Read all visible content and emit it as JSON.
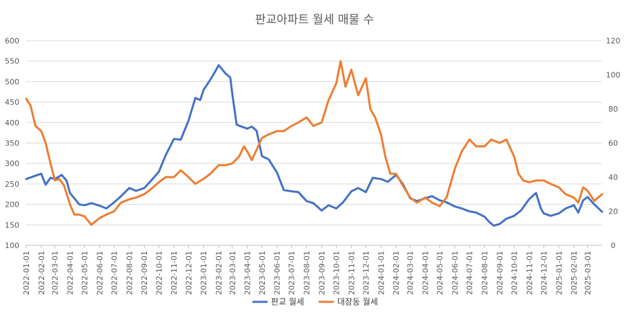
{
  "chart_data": {
    "type": "line",
    "title": "판교아파트 월세 매물 수",
    "x_tick_labels": [
      "2022-01-01",
      "2022-02-01",
      "2022-03-01",
      "2022-04-01",
      "2022-05-01",
      "2022-06-01",
      "2022-07-01",
      "2022-08-01",
      "2022-09-01",
      "2022-10-01",
      "2022-11-01",
      "2022-12-01",
      "2023-01-01",
      "2023-02-01",
      "2023-03-01",
      "2023-04-01",
      "2023-05-01",
      "2023-06-01",
      "2023-07-01",
      "2023-08-01",
      "2023-09-01",
      "2023-10-01",
      "2023-11-01",
      "2023-12-01",
      "2024-01-01",
      "2024-02-01",
      "2024-03-01",
      "2024-04-01",
      "2024-05-01",
      "2024-06-01",
      "2024-07-01",
      "2024-08-01",
      "2024-09-01",
      "2024-10-01",
      "2024-11-01",
      "2024-12-01",
      "2025-01-01",
      "2025-02-01",
      "2025-03-01"
    ],
    "y_left": {
      "ticks": [
        100,
        150,
        200,
        250,
        300,
        350,
        400,
        450,
        500,
        550,
        600
      ],
      "range": [
        100,
        600
      ]
    },
    "y_right": {
      "ticks": [
        0,
        20,
        40,
        60,
        80,
        100,
        120
      ],
      "range": [
        0,
        120
      ]
    },
    "grid": true,
    "legend_position": "bottom",
    "series": [
      {
        "name": "판교 월세",
        "axis": "left",
        "color": "#4472c4",
        "points": [
          [
            "2022-01-01",
            262
          ],
          [
            "2022-01-15",
            268
          ],
          [
            "2022-02-01",
            275
          ],
          [
            "2022-02-10",
            248
          ],
          [
            "2022-02-20",
            265
          ],
          [
            "2022-03-01",
            262
          ],
          [
            "2022-03-15",
            272
          ],
          [
            "2022-03-25",
            258
          ],
          [
            "2022-04-01",
            228
          ],
          [
            "2022-04-10",
            215
          ],
          [
            "2022-04-20",
            200
          ],
          [
            "2022-05-01",
            198
          ],
          [
            "2022-05-15",
            203
          ],
          [
            "2022-06-01",
            197
          ],
          [
            "2022-06-15",
            190
          ],
          [
            "2022-07-01",
            205
          ],
          [
            "2022-07-15",
            220
          ],
          [
            "2022-08-01",
            240
          ],
          [
            "2022-08-15",
            233
          ],
          [
            "2022-09-01",
            240
          ],
          [
            "2022-09-15",
            258
          ],
          [
            "2022-10-01",
            280
          ],
          [
            "2022-10-15",
            320
          ],
          [
            "2022-11-01",
            360
          ],
          [
            "2022-11-15",
            358
          ],
          [
            "2022-12-01",
            405
          ],
          [
            "2022-12-15",
            460
          ],
          [
            "2022-12-25",
            455
          ],
          [
            "2023-01-01",
            480
          ],
          [
            "2023-01-15",
            505
          ],
          [
            "2023-01-25",
            525
          ],
          [
            "2023-02-01",
            540
          ],
          [
            "2023-02-15",
            520
          ],
          [
            "2023-02-25",
            510
          ],
          [
            "2023-03-01",
            470
          ],
          [
            "2023-03-10",
            395
          ],
          [
            "2023-03-20",
            390
          ],
          [
            "2023-04-01",
            385
          ],
          [
            "2023-04-10",
            390
          ],
          [
            "2023-04-20",
            380
          ],
          [
            "2023-05-01",
            318
          ],
          [
            "2023-05-15",
            310
          ],
          [
            "2023-06-01",
            278
          ],
          [
            "2023-06-15",
            235
          ],
          [
            "2023-07-01",
            232
          ],
          [
            "2023-07-15",
            230
          ],
          [
            "2023-08-01",
            208
          ],
          [
            "2023-08-15",
            203
          ],
          [
            "2023-09-01",
            185
          ],
          [
            "2023-09-15",
            198
          ],
          [
            "2023-10-01",
            190
          ],
          [
            "2023-10-15",
            205
          ],
          [
            "2023-11-01",
            232
          ],
          [
            "2023-11-15",
            240
          ],
          [
            "2023-12-01",
            230
          ],
          [
            "2023-12-15",
            265
          ],
          [
            "2024-01-01",
            262
          ],
          [
            "2024-01-15",
            255
          ],
          [
            "2024-02-01",
            272
          ],
          [
            "2024-02-15",
            250
          ],
          [
            "2024-03-01",
            215
          ],
          [
            "2024-03-15",
            208
          ],
          [
            "2024-04-01",
            215
          ],
          [
            "2024-04-15",
            220
          ],
          [
            "2024-05-01",
            210
          ],
          [
            "2024-05-15",
            205
          ],
          [
            "2024-06-01",
            195
          ],
          [
            "2024-06-15",
            190
          ],
          [
            "2024-07-01",
            183
          ],
          [
            "2024-07-15",
            180
          ],
          [
            "2024-08-01",
            170
          ],
          [
            "2024-08-10",
            158
          ],
          [
            "2024-08-20",
            148
          ],
          [
            "2024-09-01",
            152
          ],
          [
            "2024-09-15",
            165
          ],
          [
            "2024-10-01",
            172
          ],
          [
            "2024-10-15",
            185
          ],
          [
            "2024-11-01",
            213
          ],
          [
            "2024-11-15",
            228
          ],
          [
            "2024-11-25",
            190
          ],
          [
            "2024-12-01",
            178
          ],
          [
            "2024-12-15",
            172
          ],
          [
            "2025-01-01",
            178
          ],
          [
            "2025-01-15",
            190
          ],
          [
            "2025-02-01",
            198
          ],
          [
            "2025-02-10",
            180
          ],
          [
            "2025-02-20",
            210
          ],
          [
            "2025-03-01",
            218
          ],
          [
            "2025-03-15",
            200
          ],
          [
            "2025-03-31",
            182
          ]
        ]
      },
      {
        "name": "대장동 월세",
        "axis": "right",
        "color": "#ed7d31",
        "points": [
          [
            "2022-01-01",
            86
          ],
          [
            "2022-01-10",
            82
          ],
          [
            "2022-01-20",
            70
          ],
          [
            "2022-02-01",
            67
          ],
          [
            "2022-02-10",
            60
          ],
          [
            "2022-02-20",
            48
          ],
          [
            "2022-03-01",
            38
          ],
          [
            "2022-03-10",
            39
          ],
          [
            "2022-03-20",
            35
          ],
          [
            "2022-04-01",
            24
          ],
          [
            "2022-04-10",
            18
          ],
          [
            "2022-04-20",
            18
          ],
          [
            "2022-05-01",
            17
          ],
          [
            "2022-05-15",
            12
          ],
          [
            "2022-06-01",
            16
          ],
          [
            "2022-06-15",
            18
          ],
          [
            "2022-07-01",
            20
          ],
          [
            "2022-07-15",
            25
          ],
          [
            "2022-08-01",
            27
          ],
          [
            "2022-08-15",
            28
          ],
          [
            "2022-09-01",
            30
          ],
          [
            "2022-09-15",
            33
          ],
          [
            "2022-10-01",
            37
          ],
          [
            "2022-10-15",
            40
          ],
          [
            "2022-11-01",
            40
          ],
          [
            "2022-11-15",
            44
          ],
          [
            "2022-12-01",
            40
          ],
          [
            "2022-12-15",
            36
          ],
          [
            "2023-01-01",
            39
          ],
          [
            "2023-01-15",
            42
          ],
          [
            "2023-02-01",
            47
          ],
          [
            "2023-02-15",
            47
          ],
          [
            "2023-03-01",
            48
          ],
          [
            "2023-03-15",
            52
          ],
          [
            "2023-03-25",
            58
          ],
          [
            "2023-04-01",
            55
          ],
          [
            "2023-04-10",
            50
          ],
          [
            "2023-04-20",
            56
          ],
          [
            "2023-05-01",
            63
          ],
          [
            "2023-05-15",
            65
          ],
          [
            "2023-06-01",
            67
          ],
          [
            "2023-06-15",
            67
          ],
          [
            "2023-07-01",
            70
          ],
          [
            "2023-07-15",
            72
          ],
          [
            "2023-08-01",
            75
          ],
          [
            "2023-08-15",
            70
          ],
          [
            "2023-09-01",
            72
          ],
          [
            "2023-09-15",
            85
          ],
          [
            "2023-10-01",
            95
          ],
          [
            "2023-10-10",
            108
          ],
          [
            "2023-10-20",
            93
          ],
          [
            "2023-11-01",
            103
          ],
          [
            "2023-11-15",
            88
          ],
          [
            "2023-12-01",
            98
          ],
          [
            "2023-12-10",
            80
          ],
          [
            "2023-12-20",
            75
          ],
          [
            "2024-01-01",
            65
          ],
          [
            "2024-01-10",
            52
          ],
          [
            "2024-01-20",
            42
          ],
          [
            "2024-02-01",
            42
          ],
          [
            "2024-02-15",
            35
          ],
          [
            "2024-03-01",
            28
          ],
          [
            "2024-03-15",
            25
          ],
          [
            "2024-04-01",
            28
          ],
          [
            "2024-04-15",
            25
          ],
          [
            "2024-05-01",
            23
          ],
          [
            "2024-05-15",
            28
          ],
          [
            "2024-06-01",
            45
          ],
          [
            "2024-06-15",
            55
          ],
          [
            "2024-07-01",
            62
          ],
          [
            "2024-07-15",
            58
          ],
          [
            "2024-08-01",
            58
          ],
          [
            "2024-08-15",
            62
          ],
          [
            "2024-09-01",
            60
          ],
          [
            "2024-09-15",
            62
          ],
          [
            "2024-10-01",
            52
          ],
          [
            "2024-10-10",
            42
          ],
          [
            "2024-10-20",
            38
          ],
          [
            "2024-11-01",
            37
          ],
          [
            "2024-11-15",
            38
          ],
          [
            "2024-12-01",
            38
          ],
          [
            "2024-12-15",
            36
          ],
          [
            "2025-01-01",
            34
          ],
          [
            "2025-01-15",
            30
          ],
          [
            "2025-02-01",
            28
          ],
          [
            "2025-02-10",
            25
          ],
          [
            "2025-02-20",
            34
          ],
          [
            "2025-03-01",
            32
          ],
          [
            "2025-03-15",
            26
          ],
          [
            "2025-03-31",
            30
          ]
        ]
      }
    ]
  }
}
